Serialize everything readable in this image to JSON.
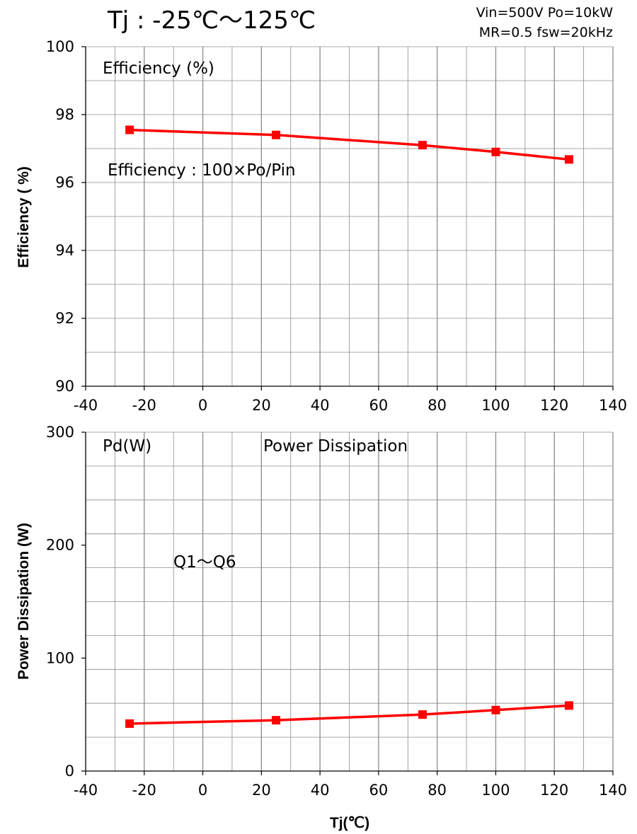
{
  "header": {
    "title": "Tj : -25℃～125℃",
    "conditions_line1": "Vin=500V Po=10kW",
    "conditions_line2": "MR=0.5 fsw=20kHz"
  },
  "colors": {
    "series": "#ff0000",
    "grid": "#8c8c8c",
    "axis": "#000000"
  },
  "chart_data": [
    {
      "type": "line",
      "title": "",
      "ylabel": "Efficiency ( %)",
      "xlabel": "",
      "xlim": [
        -40,
        140
      ],
      "ylim": [
        90,
        100
      ],
      "x_ticks": [
        "-40",
        "-20",
        "0",
        "20",
        "40",
        "60",
        "80",
        "100",
        "120",
        "140"
      ],
      "y_ticks": [
        "90",
        "92",
        "94",
        "96",
        "98",
        "100"
      ],
      "grid": true,
      "annotations": [
        "Efficiency (%)",
        "Efficiency : 100×Po/Pin"
      ],
      "series": [
        {
          "x": [
            -25,
            25,
            75,
            100,
            125
          ],
          "values": [
            97.55,
            97.4,
            97.1,
            96.9,
            96.68
          ],
          "marker": "square"
        }
      ]
    },
    {
      "type": "line",
      "title": "",
      "ylabel": "Power Dissipation (W)",
      "xlabel": "Tj(℃)",
      "xlim": [
        -40,
        140
      ],
      "ylim": [
        0,
        300
      ],
      "x_ticks": [
        "-40",
        "-20",
        "0",
        "20",
        "40",
        "60",
        "80",
        "100",
        "120",
        "140"
      ],
      "y_ticks": [
        "0",
        "100",
        "200",
        "300"
      ],
      "grid": true,
      "annotations": [
        "Pd(W)",
        "Power Dissipation",
        "Q1～Q6"
      ],
      "series": [
        {
          "x": [
            -25,
            25,
            75,
            100,
            125
          ],
          "values": [
            42,
            45,
            50,
            54,
            58
          ],
          "marker": "square"
        }
      ]
    }
  ]
}
